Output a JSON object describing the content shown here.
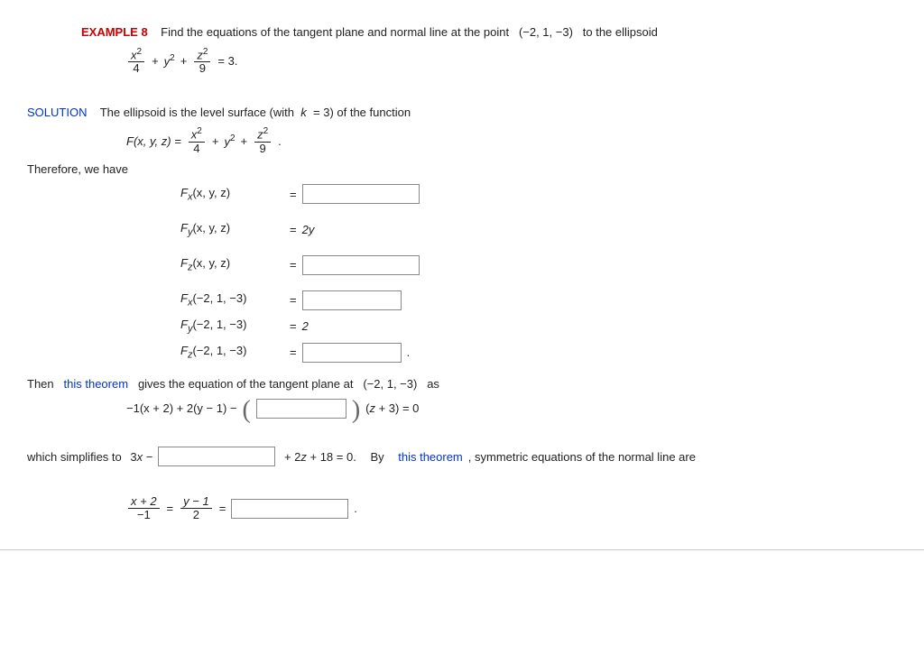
{
  "header": {
    "label": "EXAMPLE 8",
    "prompt_a": "Find the equations of the tangent plane and normal line at the point",
    "point": "(−2, 1, −3)",
    "prompt_b": "to the ellipsoid"
  },
  "ellipsoid_eq": {
    "t1_num": "x",
    "t1_sup": "2",
    "t1_den": "4",
    "plus1": "+",
    "t2": "y",
    "t2_sup": "2",
    "plus2": "+",
    "t3_num": "z",
    "t3_sup": "2",
    "t3_den": "9",
    "eq": "= 3."
  },
  "solution": {
    "label": "SOLUTION",
    "line1_a": "The ellipsoid is the level surface (with",
    "line1_k": "k",
    "line1_b": "= 3) of the function"
  },
  "F_def": {
    "lhs": "F(x, y, z) =",
    "t1_num": "x",
    "t1_sup": "2",
    "t1_den": "4",
    "plus1": "+",
    "t2": "y",
    "t2_sup": "2",
    "plus2": "+",
    "t3_num": "z",
    "t3_sup": "2",
    "t3_den": "9",
    "dot": "."
  },
  "therefore": "Therefore, we have",
  "partials": {
    "Fx_xyz": {
      "lhs": "F",
      "sub": "x",
      "args": "(x, y, z)",
      "eq": "=",
      "rhs": "",
      "isInput": true,
      "inputClass": "w120"
    },
    "Fy_xyz": {
      "lhs": "F",
      "sub": "y",
      "args": "(x, y, z)",
      "eq": "=",
      "rhs": "2y",
      "isInput": false,
      "inputClass": "w90"
    },
    "Fz_xyz": {
      "lhs": "F",
      "sub": "z",
      "args": "(x, y, z)",
      "eq": "=",
      "rhs": "",
      "isInput": true,
      "inputClass": "w120"
    },
    "Fx_pt": {
      "lhs": "F",
      "sub": "x",
      "args": "(−2, 1, −3)",
      "eq": "=",
      "rhs": "",
      "isInput": true,
      "inputClass": "w100"
    },
    "Fy_pt": {
      "lhs": "F",
      "sub": "y",
      "args": "(−2, 1, −3)",
      "eq": "=",
      "rhs": "2",
      "isInput": false,
      "inputClass": "w90"
    },
    "Fz_pt": {
      "lhs": "F",
      "sub": "z",
      "args": "(−2, 1, −3)",
      "eq": "=",
      "rhs": "",
      "isInput": true,
      "inputClass": "w100",
      "tail": "."
    }
  },
  "tangent": {
    "a": "Then",
    "link": "this theorem",
    "b": "gives the equation of the tangent plane at",
    "point": "(−2, 1, −3)",
    "c": "as",
    "eq_left": "−1(x + 2) + 2(y − 1) −",
    "eq_right": "(z + 3) = 0"
  },
  "simplify": {
    "a": "which simplifies to",
    "lead": "3x −",
    "tail": "+ 2z + 18 = 0.",
    "by": "By",
    "link": "this theorem",
    "end": ", symmetric equations of the normal line are"
  },
  "normal": {
    "f1_num": "x + 2",
    "f1_den": "−1",
    "eq1": "=",
    "f2_num": "y − 1",
    "f2_den": "2",
    "eq2": "=",
    "dot": "."
  },
  "colors": {
    "red": "#cc0000",
    "blue": "#0033cc"
  }
}
